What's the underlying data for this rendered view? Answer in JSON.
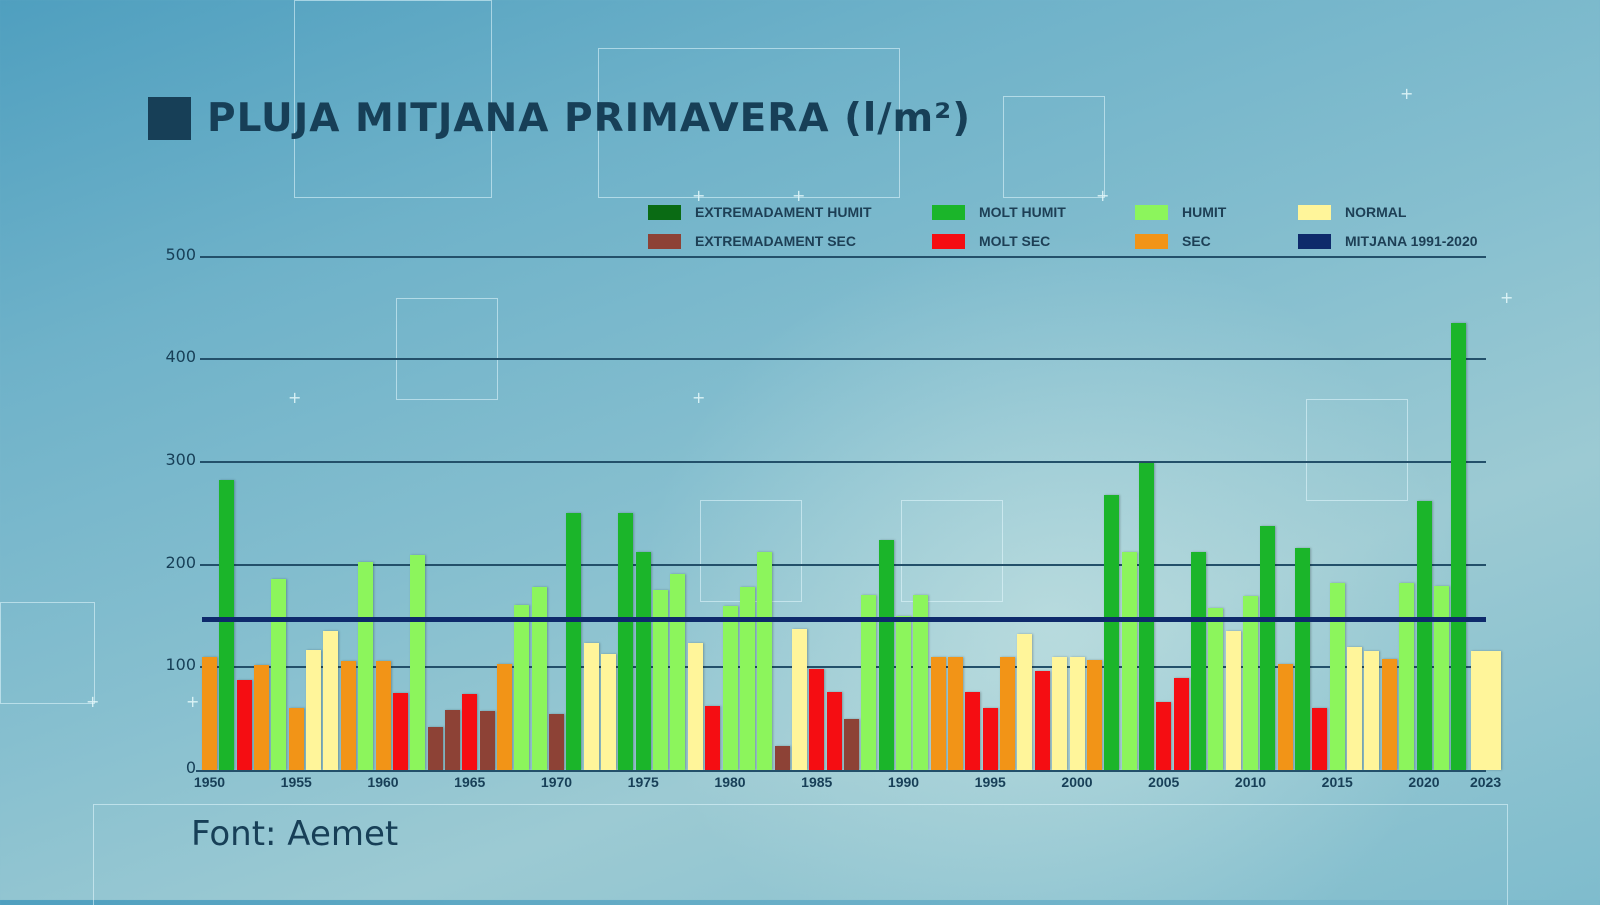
{
  "title": "PLUJA MITJANA PRIMAVERA (l/m²)",
  "source": "Font: Aemet",
  "colors": {
    "extremadament_humit": "#0a6b14",
    "molt_humit": "#1bb52a",
    "humit": "#8cf55c",
    "normal": "#fff59a",
    "extremadament_sec": "#8d4236",
    "molt_sec": "#f50d12",
    "sec": "#f29417",
    "mitjana": "#0e2a6b",
    "title": "#173f57"
  },
  "legend": [
    {
      "key": "extremadament_humit",
      "label": "EXTREMADAMENT HUMIT"
    },
    {
      "key": "molt_humit",
      "label": "MOLT HUMIT"
    },
    {
      "key": "humit",
      "label": "HUMIT"
    },
    {
      "key": "normal",
      "label": "NORMAL"
    },
    {
      "key": "extremadament_sec",
      "label": "EXTREMADAMENT SEC"
    },
    {
      "key": "molt_sec",
      "label": "MOLT SEC"
    },
    {
      "key": "sec",
      "label": "SEC"
    },
    {
      "key": "mitjana",
      "label": "MITJANA 1991-2020"
    }
  ],
  "chart_data": {
    "type": "bar",
    "title": "PLUJA MITJANA PRIMAVERA (l/m²)",
    "xlabel": "",
    "ylabel": "l/m²",
    "ylim": [
      0,
      500
    ],
    "yticks": [
      0,
      100,
      200,
      300,
      400,
      500
    ],
    "xtick_labels": [
      "1950",
      "1955",
      "1960",
      "1965",
      "1970",
      "1975",
      "1980",
      "1985",
      "1990",
      "1995",
      "2000",
      "2005",
      "2010",
      "2015",
      "2020",
      "2023"
    ],
    "grid": true,
    "legend_position": "top-right",
    "reference_line": {
      "name": "MITJANA 1991-2020",
      "value": 147
    },
    "categories": [
      1950,
      1951,
      1952,
      1953,
      1954,
      1955,
      1956,
      1957,
      1958,
      1959,
      1960,
      1961,
      1962,
      1963,
      1964,
      1965,
      1966,
      1967,
      1968,
      1969,
      1970,
      1971,
      1972,
      1973,
      1974,
      1975,
      1976,
      1977,
      1978,
      1979,
      1980,
      1981,
      1982,
      1983,
      1984,
      1985,
      1986,
      1987,
      1988,
      1989,
      1990,
      1991,
      1992,
      1993,
      1994,
      1995,
      1996,
      1997,
      1998,
      1999,
      2000,
      2001,
      2002,
      2003,
      2004,
      2005,
      2006,
      2007,
      2008,
      2009,
      2010,
      2011,
      2012,
      2013,
      2014,
      2015,
      2016,
      2017,
      2018,
      2019,
      2020,
      2021,
      2022,
      2023
    ],
    "values": [
      110,
      282,
      88,
      102,
      186,
      60,
      117,
      135,
      106,
      203,
      106,
      75,
      209,
      42,
      58,
      74,
      57,
      103,
      161,
      178,
      55,
      250,
      124,
      113,
      250,
      212,
      175,
      191,
      124,
      62,
      160,
      178,
      212,
      23,
      137,
      98,
      76,
      50,
      170,
      224,
      150,
      170,
      110,
      110,
      76,
      60,
      110,
      132,
      96,
      110,
      110,
      107,
      268,
      212,
      299,
      66,
      90,
      212,
      158,
      135,
      169,
      238,
      103,
      216,
      60,
      182,
      120,
      116,
      108,
      182,
      262,
      179,
      435,
      116
    ],
    "classes": [
      "sec",
      "molt_humit",
      "molt_sec",
      "sec",
      "humit",
      "sec",
      "normal",
      "normal",
      "sec",
      "humit",
      "sec",
      "molt_sec",
      "humit",
      "extremadament_sec",
      "extremadament_sec",
      "molt_sec",
      "extremadament_sec",
      "sec",
      "humit",
      "humit",
      "extremadament_sec",
      "molt_humit",
      "normal",
      "normal",
      "molt_humit",
      "molt_humit",
      "humit",
      "humit",
      "normal",
      "molt_sec",
      "humit",
      "humit",
      "humit",
      "extremadament_sec",
      "normal",
      "molt_sec",
      "molt_sec",
      "extremadament_sec",
      "humit",
      "molt_humit",
      "humit",
      "humit",
      "sec",
      "sec",
      "molt_sec",
      "molt_sec",
      "sec",
      "normal",
      "molt_sec",
      "normal",
      "normal",
      "sec",
      "molt_humit",
      "humit",
      "molt_humit",
      "molt_sec",
      "molt_sec",
      "molt_humit",
      "humit",
      "normal",
      "humit",
      "molt_humit",
      "sec",
      "molt_humit",
      "molt_sec",
      "humit",
      "normal",
      "normal",
      "sec",
      "humit",
      "molt_humit",
      "humit",
      "molt_humit",
      "normal"
    ]
  }
}
